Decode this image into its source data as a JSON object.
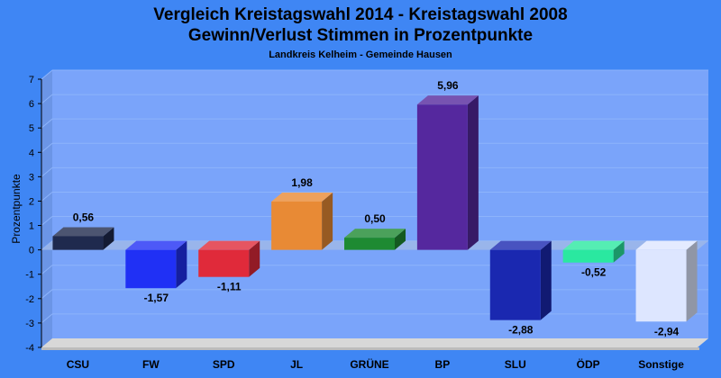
{
  "chart_data": {
    "type": "bar",
    "title_line1": "Vergleich Kreistagswahl 2014 - Kreistagswahl 2008",
    "title_line2": "Gewinn/Verlust Stimmen in Prozentpunkte",
    "subtitle": "Landkreis Kelheim - Gemeinde Hausen",
    "ylabel": "Prozentpunkte",
    "xlabel": "",
    "ylim": [
      -4,
      7
    ],
    "yticks": [
      "-4",
      "-3",
      "-2",
      "-1",
      "0",
      "1",
      "2",
      "3",
      "4",
      "5",
      "6",
      "7"
    ],
    "grid": true,
    "categories": [
      "CSU",
      "FW",
      "SPD",
      "JL",
      "GRÜNE",
      "BP",
      "SLU",
      "ÖDP",
      "Sonstige"
    ],
    "values": [
      0.56,
      -1.57,
      -1.11,
      1.98,
      0.5,
      5.96,
      -2.88,
      -0.52,
      -2.94
    ],
    "value_labels": [
      "0,56",
      "-1,57",
      "-1,11",
      "1,98",
      "0,50",
      "5,96",
      "-2,88",
      "-0,52",
      "-2,94"
    ],
    "colors": [
      "#1f2a4e",
      "#2030f5",
      "#e02a3a",
      "#e88a35",
      "#1e8a32",
      "#55289e",
      "#1a28b0",
      "#2ae8a0",
      "#dde6ff"
    ],
    "background_color": "#3f86f4",
    "plot_color": "#7aa4fa"
  }
}
